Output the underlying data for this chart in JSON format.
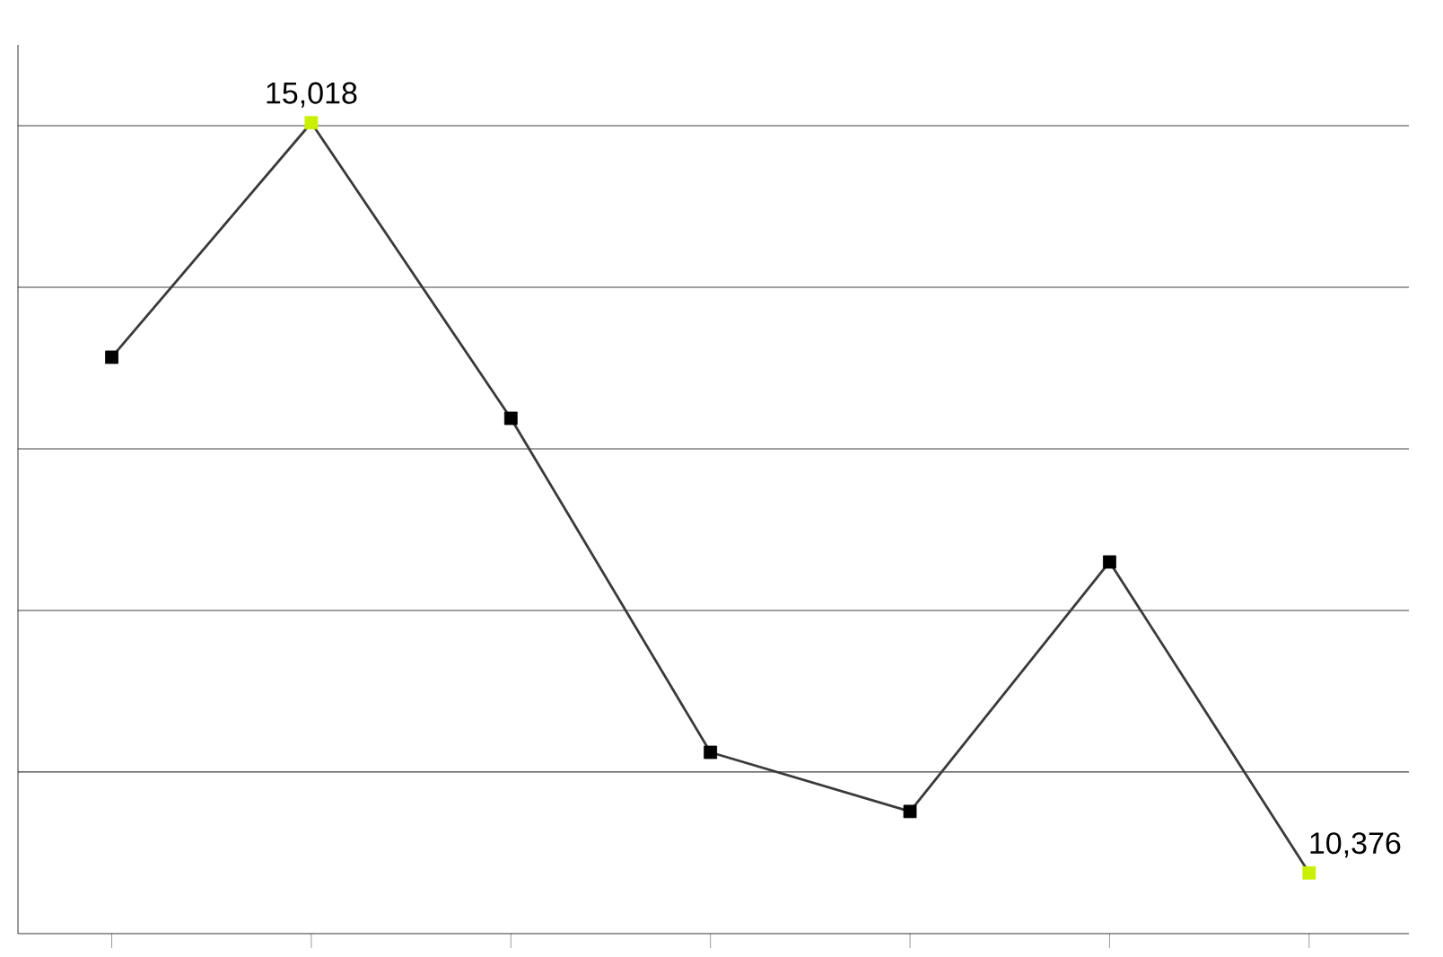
{
  "chart_data": {
    "type": "line",
    "categories": [
      null,
      null,
      null,
      null,
      null,
      null,
      null
    ],
    "series": [
      {
        "color": "#3a3a3a",
        "values": [
          13567,
          15018,
          13189,
          11122,
          10756,
          12300,
          10376
        ],
        "colors": [
          "#000000",
          "#c8f000",
          "#000000",
          "#000000",
          "#000000",
          "#000000",
          "#c8f000"
        ],
        "value_labels": [
          null,
          "15,018",
          null,
          null,
          null,
          null,
          "10,376"
        ]
      }
    ],
    "ylim": [
      10000,
      15500
    ],
    "yticks": [
      {
        "value": 11000,
        "label": null
      },
      {
        "value": 12000,
        "label": null
      },
      {
        "value": 13000,
        "label": null
      },
      {
        "value": 14000,
        "label": null
      },
      {
        "value": 15000,
        "label": null
      }
    ],
    "grid": "y",
    "marker": "square",
    "line_style": "solid"
  }
}
